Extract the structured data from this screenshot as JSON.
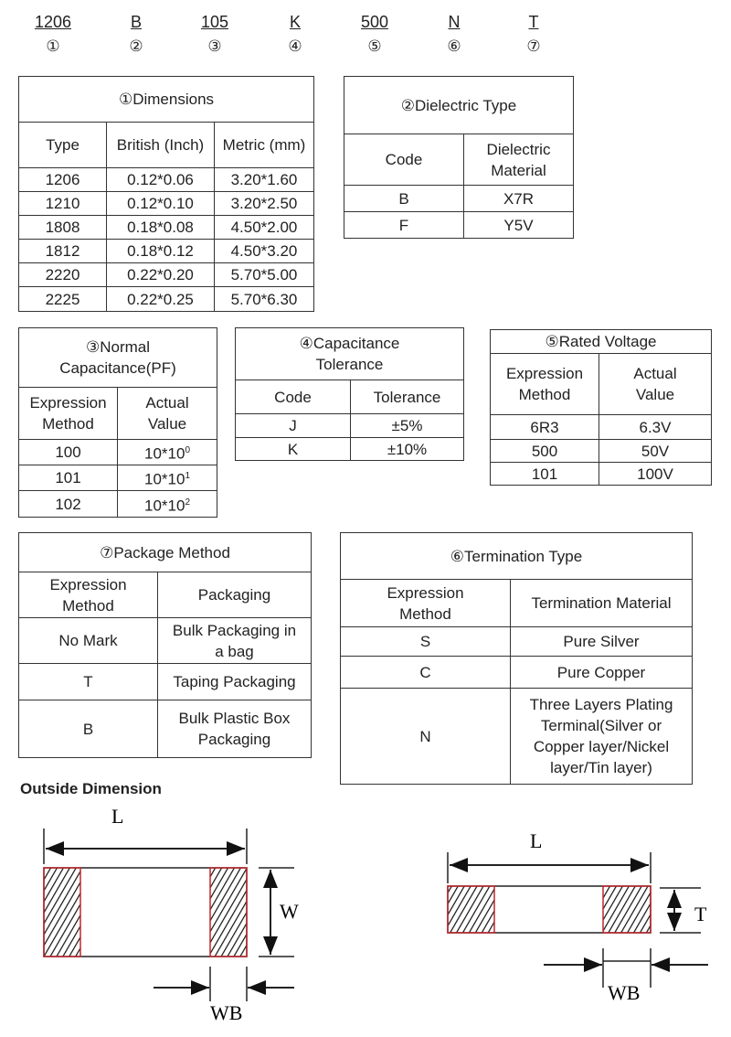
{
  "codes": [
    {
      "code": "1206",
      "num": "①"
    },
    {
      "code": "B",
      "num": "②"
    },
    {
      "code": "105",
      "num": "③"
    },
    {
      "code": "K",
      "num": "④"
    },
    {
      "code": "500",
      "num": "⑤"
    },
    {
      "code": "N",
      "num": "⑥"
    },
    {
      "code": "T",
      "num": "⑦"
    }
  ],
  "dimensions": {
    "title": "①Dimensions",
    "headers": [
      "Type",
      "British (Inch)",
      "Metric (mm)"
    ],
    "rows": [
      [
        "1206",
        "0.12*0.06",
        "3.20*1.60"
      ],
      [
        "1210",
        "0.12*0.10",
        "3.20*2.50"
      ],
      [
        "1808",
        "0.18*0.08",
        "4.50*2.00"
      ],
      [
        "1812",
        "0.18*0.12",
        "4.50*3.20"
      ],
      [
        "2220",
        "0.22*0.20",
        "5.70*5.00"
      ],
      [
        "2225",
        "0.22*0.25",
        "5.70*6.30"
      ]
    ]
  },
  "dielectric": {
    "title": "②Dielectric Type",
    "headers": [
      "Code",
      "Dielectric Material"
    ],
    "rows": [
      [
        "B",
        "X7R"
      ],
      [
        "F",
        "Y5V"
      ]
    ]
  },
  "capacitance": {
    "title": "③Normal Capacitance(PF)",
    "headers": [
      "Expression Method",
      "Actual Value"
    ],
    "rows": [
      {
        "code": "100",
        "base": "10*10",
        "exp": "0"
      },
      {
        "code": "101",
        "base": "10*10",
        "exp": "1"
      },
      {
        "code": "102",
        "base": "10*10",
        "exp": "2"
      }
    ]
  },
  "tolerance": {
    "title": "④Capacitance Tolerance",
    "headers": [
      "Code",
      "Tolerance"
    ],
    "rows": [
      [
        "J",
        "±5%"
      ],
      [
        "K",
        "±10%"
      ]
    ]
  },
  "voltage": {
    "title": "⑤Rated Voltage",
    "headers": [
      "Expression Method",
      "Actual Value"
    ],
    "rows": [
      [
        "6R3",
        "6.3V"
      ],
      [
        "500",
        "50V"
      ],
      [
        "101",
        "100V"
      ]
    ]
  },
  "package": {
    "title": "⑦Package Method",
    "headers": [
      "Expression Method",
      "Packaging"
    ],
    "rows": [
      [
        "No Mark",
        "Bulk Packaging in a bag"
      ],
      [
        "T",
        "Taping Packaging"
      ],
      [
        "B",
        "Bulk Plastic Box Packaging"
      ]
    ]
  },
  "termination": {
    "title": "⑥Termination Type",
    "headers": [
      "Expression Method",
      "Termination Material"
    ],
    "rows": [
      [
        "S",
        "Pure Silver"
      ],
      [
        "C",
        "Pure Copper"
      ],
      [
        "N",
        "Three Layers Plating Terminal(Silver or Copper layer/Nickel layer/Tin layer)"
      ]
    ]
  },
  "outside": {
    "title": "Outside Dimension",
    "top_view": {
      "length": "L",
      "width": "W",
      "band": "WB"
    },
    "side_view": {
      "length": "L",
      "thickness": "T",
      "band": "WB"
    }
  },
  "colors": {
    "electrode_outline": "#c0272d",
    "line": "#222222"
  }
}
